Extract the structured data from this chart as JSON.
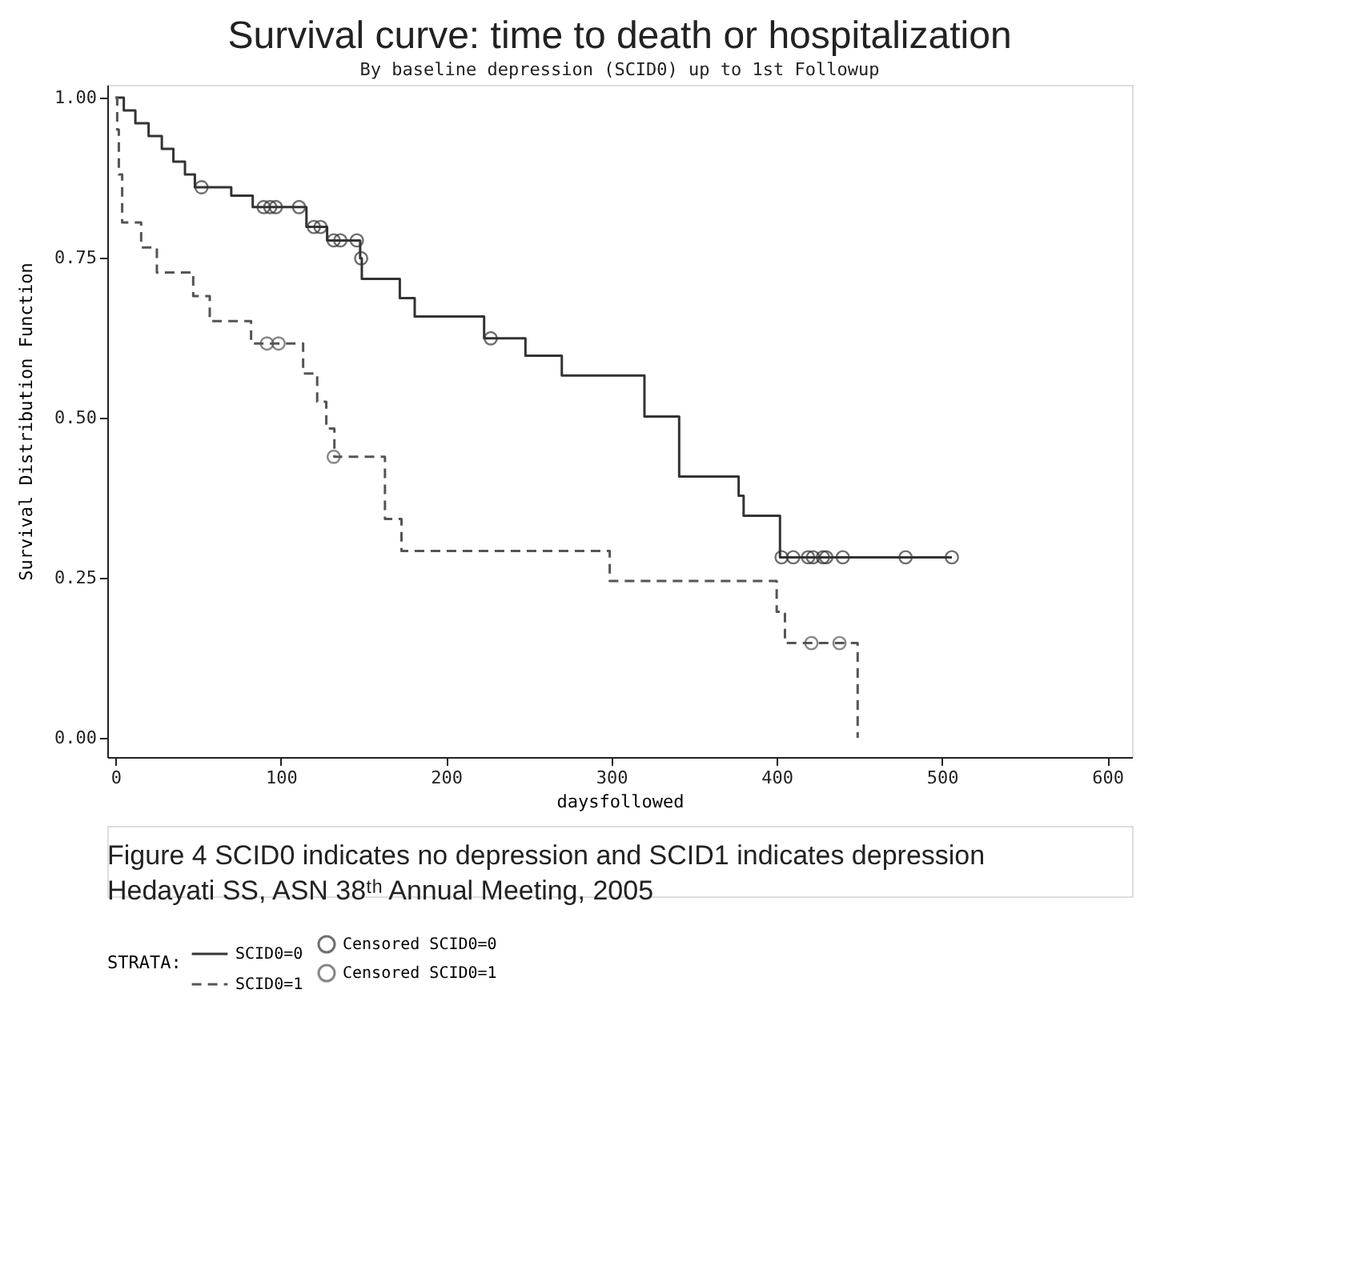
{
  "chart_data": {
    "type": "step",
    "title": "Survival curve: time to death or hospitalization",
    "subtitle": "By baseline depression (SCID0) up to 1st Followup",
    "xlabel": "daysfollowed",
    "ylabel": "Survival Distribution Function",
    "legend_title": "STRATA:",
    "xlim": [
      -5,
      615
    ],
    "xticks": [
      0,
      100,
      200,
      300,
      400,
      500,
      600
    ],
    "ylim": [
      -0.03,
      1.02
    ],
    "yticks": [
      {
        "value": 0,
        "label": "0.00"
      },
      {
        "value": 0.25,
        "label": "0.25"
      },
      {
        "value": 0.5,
        "label": "0.50"
      },
      {
        "value": 0.75,
        "label": "0.75"
      },
      {
        "value": 1,
        "label": "1.00"
      }
    ],
    "grid": false,
    "legend": "bottom",
    "series": [
      {
        "name": "SCID0=0",
        "line_style": "solid",
        "color": "#333333",
        "x": [
          0,
          5,
          12,
          20,
          28,
          35,
          42,
          48,
          70,
          83,
          115.5,
          128,
          148,
          149,
          172,
          181,
          223,
          248,
          270,
          320,
          341,
          377,
          380,
          402,
          506
        ],
        "values": [
          1.0,
          0.98,
          0.96,
          0.94,
          0.92,
          0.9,
          0.88,
          0.86,
          0.847,
          0.829,
          0.798,
          0.777,
          0.749,
          0.717,
          0.687,
          0.658,
          0.624,
          0.597,
          0.566,
          0.502,
          0.408,
          0.378,
          0.347,
          0.282,
          0.282
        ]
      },
      {
        "name": "SCID0=1",
        "line_style": "dashed",
        "color": "#555555",
        "x": [
          0,
          1,
          2,
          4,
          15.5,
          25,
          47,
          57,
          82,
          113.5,
          122,
          127.5,
          132.4,
          163,
          173,
          299,
          400,
          405,
          449
        ],
        "values": [
          1.0,
          0.95,
          0.88,
          0.805,
          0.766,
          0.727,
          0.69,
          0.651,
          0.616,
          0.569,
          0.525,
          0.483,
          0.439,
          0.342,
          0.292,
          0.245,
          0.197,
          0.148,
          0.0
        ]
      },
      {
        "name": "Censored SCID0=0",
        "type": "scatter",
        "marker": "circle",
        "color": "#333333",
        "x": [
          52,
          89.6,
          93.6,
          97,
          111,
          120,
          124,
          132,
          136,
          146,
          148.6,
          227,
          403,
          410,
          419,
          422,
          428,
          430,
          440,
          478,
          506
        ],
        "values": [
          0.86,
          0.829,
          0.829,
          0.829,
          0.829,
          0.798,
          0.798,
          0.777,
          0.777,
          0.777,
          0.749,
          0.624,
          0.282,
          0.282,
          0.282,
          0.282,
          0.282,
          0.282,
          0.282,
          0.282,
          0.282
        ]
      },
      {
        "name": "Censored SCID0=1",
        "type": "scatter",
        "marker": "circle",
        "color": "#555555",
        "x": [
          91.6,
          98.6,
          132,
          421,
          438
        ],
        "values": [
          0.616,
          0.616,
          0.439,
          0.148,
          0.148
        ]
      }
    ],
    "annotations": [
      "Figure 4 SCID0 indicates no depression and SCID1 indicates depression",
      "Hedayati SS, ASN 38ᵗʰ Annual Meeting, 2005"
    ]
  }
}
